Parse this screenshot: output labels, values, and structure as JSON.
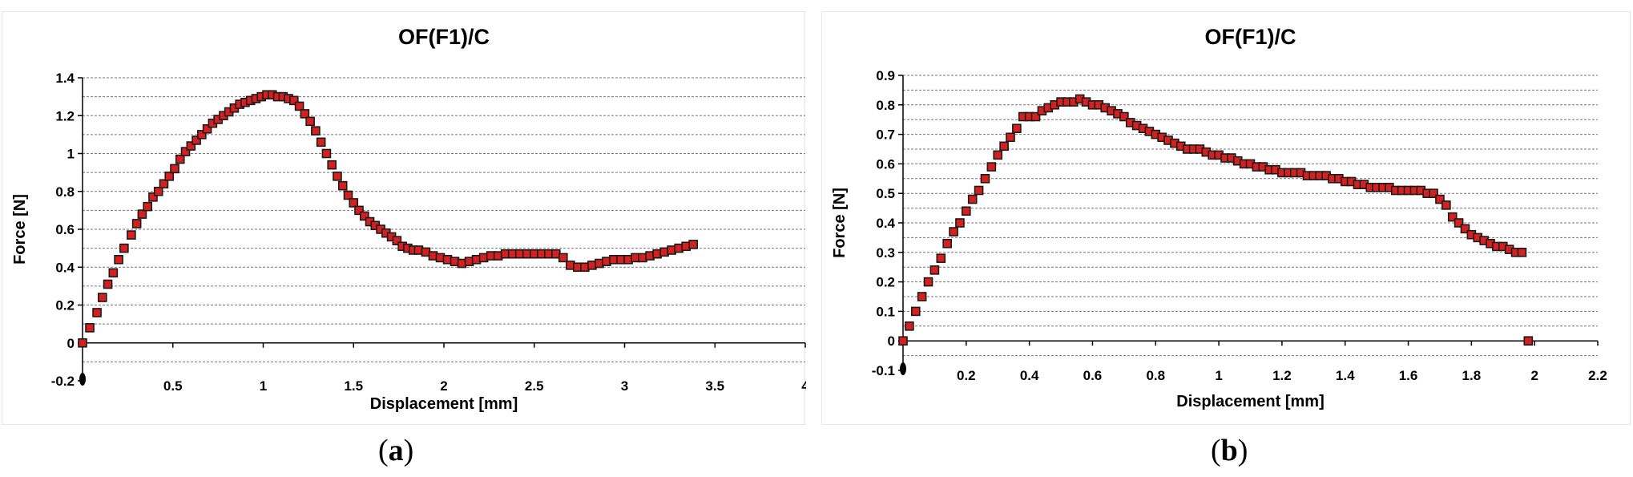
{
  "chart_data": [
    {
      "type": "scatter",
      "title": "OF(F1)/C",
      "xlabel": "Displacement [mm]",
      "ylabel": "Force [N]",
      "xlim": [
        0,
        4
      ],
      "ylim": [
        -0.2,
        1.4
      ],
      "xticks": [
        "0.5",
        "1",
        "1.5",
        "2",
        "2.5",
        "3",
        "3.5",
        "4"
      ],
      "yticks": [
        "-0.2",
        "0",
        "0.2",
        "0.4",
        "0.6",
        "0.8",
        "1",
        "1.2",
        "1.4"
      ],
      "grid": "horizontal dashed",
      "marker_color": "#d62020",
      "points": [
        [
          0.0,
          0.0
        ],
        [
          0.04,
          0.08
        ],
        [
          0.08,
          0.16
        ],
        [
          0.11,
          0.24
        ],
        [
          0.14,
          0.31
        ],
        [
          0.17,
          0.37
        ],
        [
          0.2,
          0.44
        ],
        [
          0.23,
          0.5
        ],
        [
          0.27,
          0.57
        ],
        [
          0.3,
          0.63
        ],
        [
          0.33,
          0.68
        ],
        [
          0.36,
          0.72
        ],
        [
          0.39,
          0.77
        ],
        [
          0.42,
          0.8
        ],
        [
          0.45,
          0.84
        ],
        [
          0.48,
          0.88
        ],
        [
          0.51,
          0.92
        ],
        [
          0.54,
          0.97
        ],
        [
          0.57,
          1.01
        ],
        [
          0.6,
          1.04
        ],
        [
          0.63,
          1.07
        ],
        [
          0.66,
          1.1
        ],
        [
          0.69,
          1.13
        ],
        [
          0.72,
          1.16
        ],
        [
          0.75,
          1.18
        ],
        [
          0.78,
          1.2
        ],
        [
          0.81,
          1.22
        ],
        [
          0.84,
          1.24
        ],
        [
          0.87,
          1.26
        ],
        [
          0.9,
          1.27
        ],
        [
          0.93,
          1.28
        ],
        [
          0.96,
          1.29
        ],
        [
          0.99,
          1.3
        ],
        [
          1.02,
          1.31
        ],
        [
          1.05,
          1.31
        ],
        [
          1.08,
          1.3
        ],
        [
          1.11,
          1.3
        ],
        [
          1.14,
          1.29
        ],
        [
          1.17,
          1.28
        ],
        [
          1.2,
          1.25
        ],
        [
          1.23,
          1.21
        ],
        [
          1.26,
          1.17
        ],
        [
          1.29,
          1.12
        ],
        [
          1.32,
          1.06
        ],
        [
          1.35,
          1.0
        ],
        [
          1.38,
          0.94
        ],
        [
          1.41,
          0.88
        ],
        [
          1.44,
          0.83
        ],
        [
          1.47,
          0.78
        ],
        [
          1.5,
          0.74
        ],
        [
          1.53,
          0.7
        ],
        [
          1.56,
          0.67
        ],
        [
          1.59,
          0.64
        ],
        [
          1.62,
          0.62
        ],
        [
          1.65,
          0.6
        ],
        [
          1.68,
          0.58
        ],
        [
          1.71,
          0.56
        ],
        [
          1.74,
          0.54
        ],
        [
          1.77,
          0.51
        ],
        [
          1.8,
          0.5
        ],
        [
          1.83,
          0.49
        ],
        [
          1.86,
          0.49
        ],
        [
          1.9,
          0.48
        ],
        [
          1.94,
          0.46
        ],
        [
          1.98,
          0.45
        ],
        [
          2.02,
          0.44
        ],
        [
          2.06,
          0.43
        ],
        [
          2.1,
          0.42
        ],
        [
          2.14,
          0.43
        ],
        [
          2.18,
          0.44
        ],
        [
          2.22,
          0.45
        ],
        [
          2.26,
          0.46
        ],
        [
          2.3,
          0.46
        ],
        [
          2.34,
          0.47
        ],
        [
          2.38,
          0.47
        ],
        [
          2.42,
          0.47
        ],
        [
          2.46,
          0.47
        ],
        [
          2.5,
          0.47
        ],
        [
          2.54,
          0.47
        ],
        [
          2.58,
          0.47
        ],
        [
          2.62,
          0.47
        ],
        [
          2.66,
          0.45
        ],
        [
          2.7,
          0.41
        ],
        [
          2.74,
          0.4
        ],
        [
          2.78,
          0.4
        ],
        [
          2.82,
          0.41
        ],
        [
          2.86,
          0.42
        ],
        [
          2.9,
          0.43
        ],
        [
          2.94,
          0.44
        ],
        [
          2.98,
          0.44
        ],
        [
          3.02,
          0.44
        ],
        [
          3.06,
          0.45
        ],
        [
          3.1,
          0.45
        ],
        [
          3.14,
          0.46
        ],
        [
          3.18,
          0.47
        ],
        [
          3.22,
          0.48
        ],
        [
          3.26,
          0.49
        ],
        [
          3.3,
          0.5
        ],
        [
          3.34,
          0.51
        ],
        [
          3.38,
          0.52
        ]
      ]
    },
    {
      "type": "scatter",
      "title": "OF(F1)/C",
      "xlabel": "Displacement [mm]",
      "ylabel": "Force [N]",
      "xlim": [
        0,
        2.2
      ],
      "ylim": [
        -0.1,
        0.9
      ],
      "xticks": [
        "0.2",
        "0.4",
        "0.6",
        "0.8",
        "1",
        "1.2",
        "1.4",
        "1.6",
        "1.8",
        "2",
        "2.2"
      ],
      "yticks": [
        "-0.1",
        "0",
        "0.1",
        "0.2",
        "0.3",
        "0.4",
        "0.5",
        "0.6",
        "0.7",
        "0.8",
        "0.9"
      ],
      "grid": "horizontal dashed",
      "marker_color": "#d62020",
      "points": [
        [
          0.0,
          0.0
        ],
        [
          0.02,
          0.05
        ],
        [
          0.04,
          0.1
        ],
        [
          0.06,
          0.15
        ],
        [
          0.08,
          0.2
        ],
        [
          0.1,
          0.24
        ],
        [
          0.12,
          0.28
        ],
        [
          0.14,
          0.33
        ],
        [
          0.16,
          0.37
        ],
        [
          0.18,
          0.4
        ],
        [
          0.2,
          0.44
        ],
        [
          0.22,
          0.48
        ],
        [
          0.24,
          0.51
        ],
        [
          0.26,
          0.55
        ],
        [
          0.28,
          0.59
        ],
        [
          0.3,
          0.63
        ],
        [
          0.32,
          0.66
        ],
        [
          0.34,
          0.69
        ],
        [
          0.36,
          0.72
        ],
        [
          0.38,
          0.76
        ],
        [
          0.4,
          0.76
        ],
        [
          0.42,
          0.76
        ],
        [
          0.44,
          0.78
        ],
        [
          0.46,
          0.79
        ],
        [
          0.48,
          0.8
        ],
        [
          0.5,
          0.81
        ],
        [
          0.52,
          0.81
        ],
        [
          0.54,
          0.81
        ],
        [
          0.56,
          0.82
        ],
        [
          0.58,
          0.81
        ],
        [
          0.6,
          0.8
        ],
        [
          0.62,
          0.8
        ],
        [
          0.64,
          0.79
        ],
        [
          0.66,
          0.78
        ],
        [
          0.68,
          0.77
        ],
        [
          0.7,
          0.76
        ],
        [
          0.72,
          0.74
        ],
        [
          0.74,
          0.73
        ],
        [
          0.76,
          0.72
        ],
        [
          0.78,
          0.71
        ],
        [
          0.8,
          0.7
        ],
        [
          0.82,
          0.69
        ],
        [
          0.84,
          0.68
        ],
        [
          0.86,
          0.67
        ],
        [
          0.88,
          0.66
        ],
        [
          0.9,
          0.65
        ],
        [
          0.92,
          0.65
        ],
        [
          0.94,
          0.65
        ],
        [
          0.96,
          0.64
        ],
        [
          0.98,
          0.63
        ],
        [
          1.0,
          0.63
        ],
        [
          1.02,
          0.62
        ],
        [
          1.04,
          0.62
        ],
        [
          1.06,
          0.61
        ],
        [
          1.08,
          0.6
        ],
        [
          1.1,
          0.6
        ],
        [
          1.12,
          0.59
        ],
        [
          1.14,
          0.59
        ],
        [
          1.16,
          0.58
        ],
        [
          1.18,
          0.58
        ],
        [
          1.2,
          0.57
        ],
        [
          1.22,
          0.57
        ],
        [
          1.24,
          0.57
        ],
        [
          1.26,
          0.57
        ],
        [
          1.28,
          0.56
        ],
        [
          1.3,
          0.56
        ],
        [
          1.32,
          0.56
        ],
        [
          1.34,
          0.56
        ],
        [
          1.36,
          0.55
        ],
        [
          1.38,
          0.55
        ],
        [
          1.4,
          0.54
        ],
        [
          1.42,
          0.54
        ],
        [
          1.44,
          0.53
        ],
        [
          1.46,
          0.53
        ],
        [
          1.48,
          0.52
        ],
        [
          1.5,
          0.52
        ],
        [
          1.52,
          0.52
        ],
        [
          1.54,
          0.52
        ],
        [
          1.56,
          0.51
        ],
        [
          1.58,
          0.51
        ],
        [
          1.6,
          0.51
        ],
        [
          1.62,
          0.51
        ],
        [
          1.64,
          0.51
        ],
        [
          1.66,
          0.5
        ],
        [
          1.68,
          0.5
        ],
        [
          1.7,
          0.48
        ],
        [
          1.72,
          0.46
        ],
        [
          1.74,
          0.42
        ],
        [
          1.76,
          0.4
        ],
        [
          1.78,
          0.38
        ],
        [
          1.8,
          0.36
        ],
        [
          1.82,
          0.35
        ],
        [
          1.84,
          0.34
        ],
        [
          1.86,
          0.33
        ],
        [
          1.88,
          0.32
        ],
        [
          1.9,
          0.32
        ],
        [
          1.92,
          0.31
        ],
        [
          1.94,
          0.3
        ],
        [
          1.96,
          0.3
        ],
        [
          1.98,
          0.0
        ]
      ]
    }
  ],
  "captions": [
    "a",
    "b"
  ]
}
